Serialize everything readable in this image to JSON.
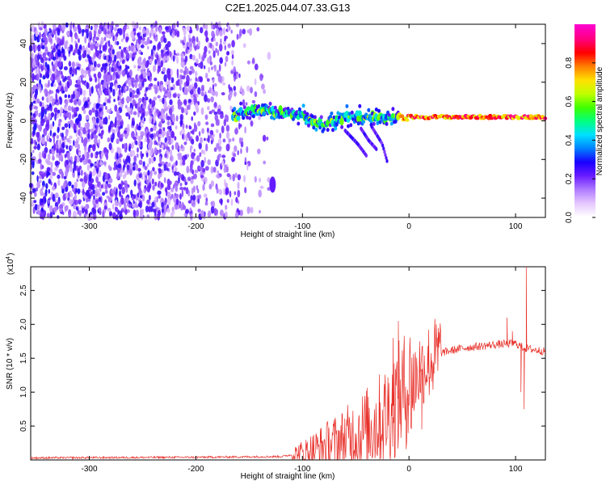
{
  "title": "C2E1.2025.044.07.33.G13",
  "chart_data": [
    {
      "type": "heatmap",
      "name": "spectrogram",
      "xlabel": "Height of straight line (km)",
      "ylabel": "Frequency (Hz)",
      "xlim": [
        -355,
        128
      ],
      "ylim": [
        -50,
        50
      ],
      "xticks": [
        -300,
        -200,
        -100,
        0,
        100
      ],
      "yticks": [
        -40,
        -20,
        0,
        20,
        40
      ],
      "colorbar": {
        "label": "Normalized spectral amplitude",
        "ticks": [
          0.0,
          0.2,
          0.4,
          0.6,
          0.8
        ],
        "range": [
          0,
          1
        ],
        "colormap": [
          "#ffffff",
          "#e6c8ff",
          "#b07cff",
          "#6a1dff",
          "#1a00ff",
          "#0080ff",
          "#00e0ff",
          "#00ff80",
          "#40ff00",
          "#c0ff00",
          "#ffe000",
          "#ff8000",
          "#ff0000",
          "#ff0080",
          "#ff00cc"
        ]
      },
      "features": {
        "noise_region_x": [
          -355,
          -125
        ],
        "signal_track_x": [
          -165,
          128
        ],
        "signal_track_freq": [
          {
            "x": -160,
            "f": 5
          },
          {
            "x": -130,
            "f": 5
          },
          {
            "x": -100,
            "f": 3
          },
          {
            "x": -80,
            "f": -2
          },
          {
            "x": -60,
            "f": 2
          },
          {
            "x": -40,
            "f": 3
          },
          {
            "x": -20,
            "f": 1
          },
          {
            "x": 0,
            "f": 2
          },
          {
            "x": 50,
            "f": 2
          },
          {
            "x": 100,
            "f": 2
          },
          {
            "x": 128,
            "f": 2
          }
        ],
        "secondary_branches": [
          [
            {
              "x": -60,
              "f": -5
            },
            {
              "x": -48,
              "f": -12
            },
            {
              "x": -40,
              "f": -18
            }
          ],
          [
            {
              "x": -45,
              "f": -4
            },
            {
              "x": -38,
              "f": -10
            },
            {
              "x": -30,
              "f": -15
            }
          ],
          [
            {
              "x": -35,
              "f": -3
            },
            {
              "x": -25,
              "f": -12
            },
            {
              "x": -20,
              "f": -22
            }
          ]
        ],
        "strong_band_x": [
          -10,
          128
        ],
        "strong_band_level": 0.9,
        "isolated_blob": {
          "x": -128,
          "f": -33
        }
      }
    },
    {
      "type": "line",
      "name": "snr",
      "xlabel": "Height of straight line (km)",
      "ylabel": "SNR (10 * v/v)",
      "yscale_label": "(x10",
      "yscale_exp": "4",
      "xlim": [
        -355,
        128
      ],
      "ylim": [
        0,
        2.85
      ],
      "xticks": [
        -300,
        -200,
        -100,
        0,
        100
      ],
      "yticks": [
        0.5,
        1.0,
        1.5,
        2.0,
        2.5
      ],
      "ytick_labels": [
        "0.5",
        "1.0",
        "1.5",
        "2.0",
        "2.5"
      ],
      "color": "#e8302a",
      "series": [
        {
          "envelope": [
            {
              "x": -355,
              "v": 0.03
            },
            {
              "x": -200,
              "v": 0.04
            },
            {
              "x": -120,
              "v": 0.05
            },
            {
              "x": -100,
              "v": 0.1
            },
            {
              "x": -80,
              "v": 0.2
            },
            {
              "x": -60,
              "v": 0.3
            },
            {
              "x": -40,
              "v": 0.45
            },
            {
              "x": -25,
              "v": 0.6
            },
            {
              "x": -15,
              "v": 0.8
            },
            {
              "x": -5,
              "v": 1.0
            },
            {
              "x": 5,
              "v": 1.2
            },
            {
              "x": 15,
              "v": 1.4
            },
            {
              "x": 30,
              "v": 1.58
            },
            {
              "x": 50,
              "v": 1.65
            },
            {
              "x": 80,
              "v": 1.7
            },
            {
              "x": 100,
              "v": 1.72
            },
            {
              "x": 108,
              "v": 1.65
            },
            {
              "x": 128,
              "v": 1.6
            }
          ],
          "spikes": [
            {
              "x": -10,
              "v": 2.05
            },
            {
              "x": -15,
              "v": 1.8
            },
            {
              "x": 10,
              "v": 1.75
            },
            {
              "x": 12,
              "v": 0.45
            },
            {
              "x": 92,
              "v": 2.1
            },
            {
              "x": 97,
              "v": 1.9
            },
            {
              "x": 105,
              "v": 1.0
            },
            {
              "x": 110,
              "v": 2.85
            },
            {
              "x": 108,
              "v": 0.75
            }
          ]
        }
      ]
    }
  ]
}
